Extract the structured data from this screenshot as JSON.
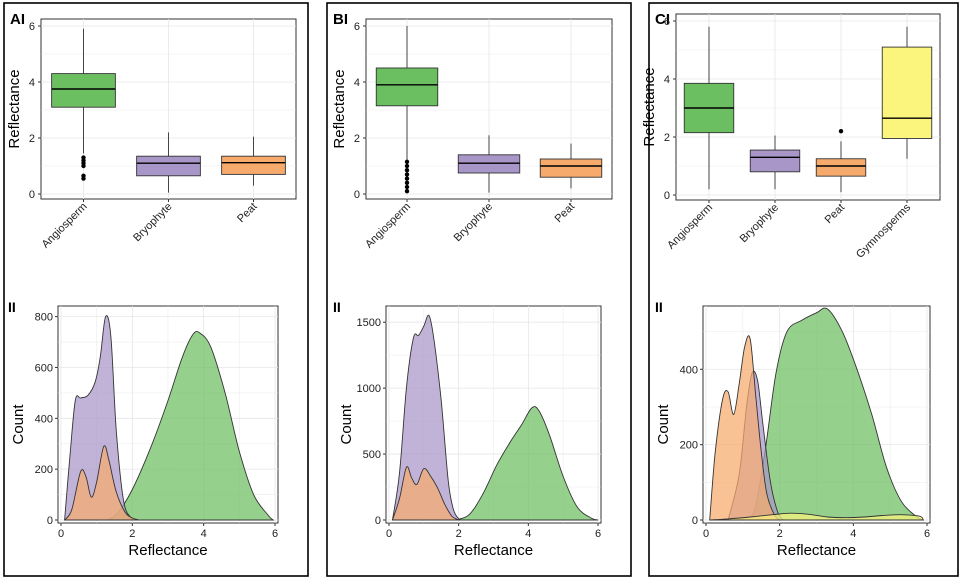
{
  "colors": {
    "Angiosperm": "#6cbf60",
    "Bryophyte": "#a996c8",
    "Peat": "#f6aa6c",
    "Gymnosperms": "#fbf57d"
  },
  "panels": [
    {
      "label": "AI",
      "sub_label": "II",
      "box_chart": {
        "type": "box",
        "categories": [
          "Angiosperm",
          "Bryophyte",
          "Peat"
        ],
        "ylabel": "Reflectance",
        "ylim": [
          0,
          6
        ],
        "yticks": [
          0,
          2,
          4,
          6
        ],
        "boxes": [
          {
            "name": "Angiosperm",
            "min": 1.45,
            "q1": 3.1,
            "median": 3.75,
            "q3": 4.3,
            "max": 5.9,
            "outliers": [
              0.55,
              0.65,
              1.0,
              1.1,
              1.2,
              1.3
            ]
          },
          {
            "name": "Bryophyte",
            "min": 0.05,
            "q1": 0.65,
            "median": 1.1,
            "q3": 1.35,
            "max": 2.2,
            "outliers": []
          },
          {
            "name": "Peat",
            "min": 0.3,
            "q1": 0.7,
            "median": 1.12,
            "q3": 1.35,
            "max": 2.05,
            "outliers": []
          }
        ]
      },
      "density_chart": {
        "type": "area",
        "xlabel": "Reflectance",
        "ylabel": "Count",
        "xlim": [
          0,
          6
        ],
        "ylim": [
          0,
          830
        ],
        "xticks": [
          0,
          2,
          4,
          6
        ],
        "yticks": [
          0,
          200,
          400,
          600,
          800
        ],
        "series": [
          {
            "name": "Angiosperm",
            "x": [
              1.3,
              1.6,
              2.0,
              2.5,
              3.0,
              3.4,
              3.7,
              3.9,
              4.2,
              4.6,
              5.0,
              5.4,
              5.8,
              5.95
            ],
            "values": [
              0,
              30,
              120,
              280,
              470,
              640,
              730,
              735,
              680,
              500,
              270,
              100,
              20,
              0
            ]
          },
          {
            "name": "Bryophyte",
            "x": [
              0.1,
              0.25,
              0.4,
              0.55,
              0.75,
              0.95,
              1.1,
              1.25,
              1.4,
              1.55,
              1.75,
              1.95,
              2.1
            ],
            "values": [
              0,
              250,
              470,
              480,
              490,
              540,
              640,
              800,
              720,
              350,
              80,
              10,
              0
            ]
          },
          {
            "name": "Peat",
            "x": [
              0.1,
              0.3,
              0.55,
              0.7,
              0.85,
              1.0,
              1.2,
              1.35,
              1.55,
              1.8,
              2.0,
              2.2
            ],
            "values": [
              0,
              40,
              190,
              170,
              90,
              150,
              290,
              230,
              110,
              30,
              8,
              0
            ]
          }
        ]
      }
    },
    {
      "label": "BI",
      "sub_label": "II",
      "box_chart": {
        "type": "box",
        "categories": [
          "Angiosperm",
          "Bryophyte",
          "Peat"
        ],
        "ylabel": "Reflectance",
        "ylim": [
          0,
          6
        ],
        "yticks": [
          0,
          2,
          4,
          6
        ],
        "boxes": [
          {
            "name": "Angiosperm",
            "min": 1.2,
            "q1": 3.15,
            "median": 3.9,
            "q3": 4.5,
            "max": 6.0,
            "outliers": [
              0.1,
              0.25,
              0.4,
              0.55,
              0.7,
              0.85,
              1.0,
              1.15
            ]
          },
          {
            "name": "Bryophyte",
            "min": 0.05,
            "q1": 0.75,
            "median": 1.1,
            "q3": 1.4,
            "max": 2.1,
            "outliers": []
          },
          {
            "name": "Peat",
            "min": 0.2,
            "q1": 0.6,
            "median": 1.0,
            "q3": 1.25,
            "max": 1.8,
            "outliers": []
          }
        ]
      },
      "density_chart": {
        "type": "area",
        "xlabel": "Reflectance",
        "ylabel": "Count",
        "xlim": [
          0,
          6
        ],
        "ylim": [
          0,
          1600
        ],
        "xticks": [
          0,
          2,
          4,
          6
        ],
        "yticks": [
          0,
          500,
          1000,
          1500
        ],
        "series": [
          {
            "name": "Angiosperm",
            "x": [
              1.9,
              2.3,
              2.7,
              3.1,
              3.5,
              3.8,
              4.1,
              4.3,
              4.6,
              5.0,
              5.4,
              5.8,
              6.0
            ],
            "values": [
              0,
              40,
              200,
              420,
              600,
              720,
              850,
              830,
              650,
              330,
              100,
              15,
              0
            ]
          },
          {
            "name": "Bryophyte",
            "x": [
              0.1,
              0.3,
              0.5,
              0.7,
              0.85,
              1.0,
              1.15,
              1.3,
              1.5,
              1.7,
              1.85,
              2.0,
              2.1
            ],
            "values": [
              0,
              350,
              1000,
              1380,
              1400,
              1470,
              1550,
              1350,
              900,
              300,
              80,
              10,
              0
            ]
          },
          {
            "name": "Peat",
            "x": [
              0.1,
              0.3,
              0.5,
              0.65,
              0.8,
              1.0,
              1.2,
              1.4,
              1.6,
              1.8,
              2.0
            ],
            "values": [
              0,
              160,
              400,
              320,
              270,
              390,
              330,
              240,
              120,
              30,
              0
            ]
          }
        ]
      }
    },
    {
      "label": "CI",
      "sub_label": "II",
      "box_chart": {
        "type": "box",
        "categories": [
          "Angiosperm",
          "Bryophyte",
          "Peat",
          "Gymnosperms"
        ],
        "ylabel": "Reflectance",
        "ylim": [
          0,
          6
        ],
        "yticks": [
          0,
          2,
          4,
          6
        ],
        "boxes": [
          {
            "name": "Angiosperm",
            "min": 0.2,
            "q1": 2.15,
            "median": 3.0,
            "q3": 3.85,
            "max": 5.8,
            "outliers": []
          },
          {
            "name": "Bryophyte",
            "min": 0.2,
            "q1": 0.8,
            "median": 1.3,
            "q3": 1.55,
            "max": 2.05,
            "outliers": []
          },
          {
            "name": "Peat",
            "min": 0.1,
            "q1": 0.65,
            "median": 1.0,
            "q3": 1.25,
            "max": 1.85,
            "outliers": [
              2.2
            ]
          },
          {
            "name": "Gymnosperms",
            "min": 1.25,
            "q1": 1.95,
            "median": 2.65,
            "q3": 5.1,
            "max": 5.8,
            "outliers": []
          }
        ]
      },
      "density_chart": {
        "type": "area",
        "xlabel": "Reflectance",
        "ylabel": "Count",
        "xlim": [
          0,
          6
        ],
        "ylim": [
          0,
          560
        ],
        "xticks": [
          0,
          2,
          4,
          6
        ],
        "yticks": [
          0,
          200,
          400
        ],
        "series": [
          {
            "name": "Angiosperm",
            "x": [
              1.0,
              1.3,
              1.6,
              1.9,
              2.2,
              2.6,
              3.0,
              3.3,
              3.7,
              4.1,
              4.5,
              4.9,
              5.3,
              5.7,
              5.9
            ],
            "values": [
              0,
              20,
              180,
              390,
              500,
              530,
              550,
              560,
              500,
              400,
              280,
              140,
              50,
              10,
              0
            ]
          },
          {
            "name": "Bryophyte",
            "x": [
              0.6,
              0.9,
              1.1,
              1.25,
              1.4,
              1.55,
              1.75,
              1.95,
              2.1
            ],
            "values": [
              0,
              120,
              300,
              390,
              370,
              250,
              100,
              20,
              0
            ]
          },
          {
            "name": "Peat",
            "x": [
              0.1,
              0.25,
              0.45,
              0.6,
              0.75,
              0.9,
              1.05,
              1.2,
              1.35,
              1.5,
              1.65,
              1.85,
              2.0
            ],
            "values": [
              0,
              180,
              320,
              340,
              280,
              360,
              460,
              480,
              330,
              180,
              70,
              15,
              0
            ]
          },
          {
            "name": "Gymnosperms",
            "x": [
              0.1,
              0.6,
              1.2,
              1.8,
              2.3,
              2.8,
              3.3,
              3.8,
              4.3,
              4.8,
              5.3,
              5.8,
              5.9
            ],
            "values": [
              0,
              3,
              8,
              14,
              18,
              15,
              8,
              6,
              8,
              12,
              14,
              10,
              0
            ]
          }
        ]
      }
    }
  ]
}
